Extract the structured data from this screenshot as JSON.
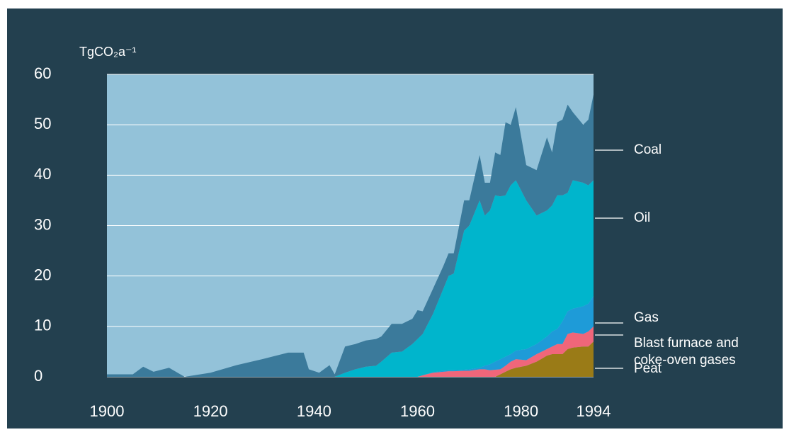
{
  "chart_data": {
    "type": "stacked_area",
    "y_axis_label": "TgCO₂a⁻¹",
    "x": [
      1900,
      1903,
      1905,
      1907,
      1909,
      1912,
      1915,
      1920,
      1925,
      1930,
      1935,
      1938,
      1939,
      1941,
      1943,
      1944,
      1946,
      1948,
      1950,
      1952,
      1953,
      1955,
      1957,
      1959,
      1960,
      1961,
      1963,
      1965,
      1966,
      1967,
      1969,
      1970,
      1972,
      1973,
      1974,
      1975,
      1976,
      1977,
      1978,
      1979,
      1981,
      1983,
      1985,
      1986,
      1987,
      1988,
      1989,
      1990,
      1992,
      1993,
      1994
    ],
    "series": [
      {
        "name": "Peat",
        "color": "#9a7b17",
        "values": [
          0,
          0,
          0,
          0,
          0,
          0,
          0,
          0,
          0,
          0,
          0,
          0,
          0,
          0,
          0,
          0,
          0,
          0,
          0,
          0,
          0,
          0,
          0,
          0,
          0,
          0,
          0,
          0,
          0,
          0,
          0,
          0,
          0,
          0,
          0,
          0,
          0.5,
          1,
          1.5,
          1.8,
          2.2,
          3,
          4.2,
          4.5,
          4.5,
          4.5,
          5.5,
          5.8,
          6,
          6,
          7
        ]
      },
      {
        "name": "Blast furnace and coke-oven gases",
        "color": "#f0667a",
        "values": [
          0,
          0,
          0,
          0,
          0,
          0,
          0,
          0,
          0,
          0,
          0,
          0,
          0,
          0,
          0,
          0,
          0,
          0,
          0,
          0,
          0,
          0,
          0,
          0,
          0,
          0.3,
          0.8,
          1,
          1.1,
          1.1,
          1.2,
          1.2,
          1.5,
          1.5,
          1.3,
          1.4,
          1,
          1.2,
          1.5,
          1.7,
          1.1,
          1.5,
          1.3,
          1.5,
          2,
          2,
          3,
          3,
          2.5,
          3,
          3
        ]
      },
      {
        "name": "Gas",
        "color": "#1e9bd8",
        "values": [
          0,
          0,
          0,
          0,
          0,
          0,
          0,
          0,
          0,
          0,
          0,
          0,
          0,
          0,
          0,
          0,
          0,
          0,
          0,
          0,
          0,
          0,
          0,
          0,
          0,
          0,
          0.1,
          0.2,
          0.2,
          0.2,
          0.2,
          0.3,
          0.3,
          0.7,
          1.2,
          1.6,
          2,
          1.8,
          1.5,
          1.7,
          2.2,
          2,
          2.5,
          3,
          3,
          4.5,
          4.5,
          4.7,
          5.5,
          5.5,
          6
        ]
      },
      {
        "name": "Oil",
        "color": "#00b5cc",
        "values": [
          0,
          0,
          0,
          0,
          0,
          0,
          0,
          0,
          0,
          0,
          0,
          0,
          0,
          0,
          0,
          0,
          0.8,
          1.5,
          2,
          2.2,
          3,
          4.8,
          5,
          6.5,
          7.5,
          8.2,
          11.6,
          16.3,
          18.7,
          19.2,
          27.6,
          28.5,
          33.2,
          29.8,
          30.5,
          33,
          32.3,
          32,
          33.5,
          33.8,
          29.5,
          25.5,
          25,
          25,
          26.5,
          25,
          23.5,
          25.5,
          24.5,
          23.5,
          23
        ]
      },
      {
        "name": "Coal",
        "color": "#3b7a9b",
        "values": [
          0.5,
          0.5,
          0.5,
          2,
          1,
          1.8,
          0,
          0.8,
          2.3,
          3.5,
          4.8,
          4.8,
          1.5,
          0.8,
          2.3,
          0.5,
          5.2,
          5,
          5.2,
          5.3,
          5,
          5.7,
          5.5,
          5,
          5.7,
          4.5,
          5,
          4.5,
          4.5,
          4,
          6,
          5,
          9,
          6.5,
          5.5,
          8.5,
          8.2,
          14.5,
          12,
          14.5,
          7,
          9,
          14.5,
          10.5,
          14.5,
          15,
          17.5,
          13.5,
          11.5,
          13,
          17
        ]
      }
    ],
    "xlim": [
      1900,
      1994
    ],
    "xticks": [
      1900,
      1920,
      1940,
      1960,
      1980,
      1994
    ],
    "ylim": [
      0,
      60
    ],
    "yticks": [
      0,
      10,
      20,
      30,
      40,
      50,
      60
    ],
    "grid": true,
    "background": "#93c2d9"
  }
}
